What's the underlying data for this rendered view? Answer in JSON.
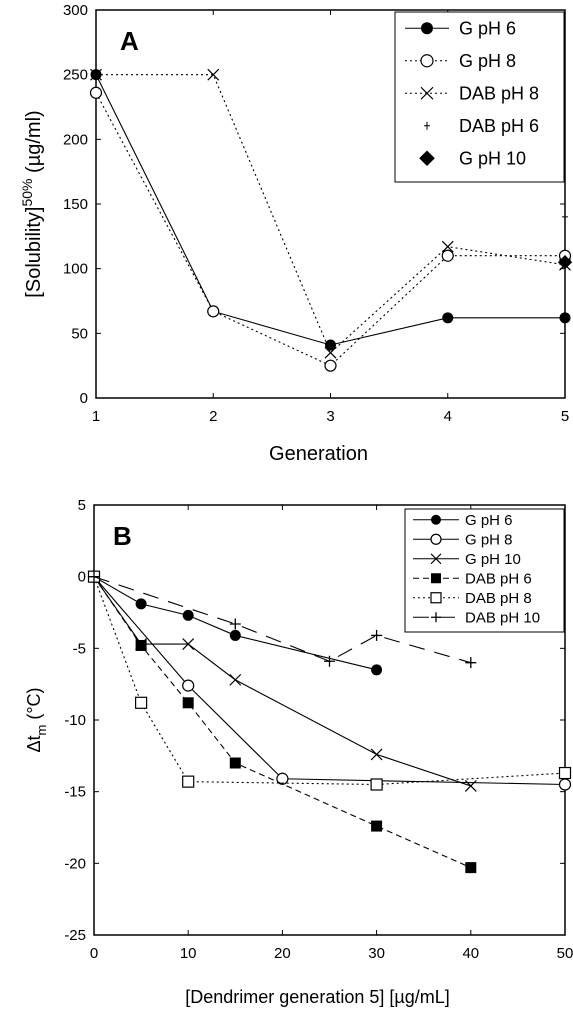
{
  "chart_data": [
    {
      "type": "line",
      "panel_label": "A",
      "xlabel": "Generation",
      "ylabel": "[Solubility]",
      "ylabel_sup": "50%",
      "ylabel_unit": "(µg/ml)",
      "xlim": [
        1,
        5
      ],
      "ylim": [
        0,
        300
      ],
      "xticks": [
        1,
        2,
        3,
        4,
        5
      ],
      "yticks": [
        0,
        50,
        100,
        150,
        200,
        250,
        300
      ],
      "grid": false,
      "legend_position": "top-right",
      "series": [
        {
          "name": "G pH 6",
          "marker": "filled-circle",
          "line": "solid",
          "x": [
            1,
            2,
            3,
            4,
            5
          ],
          "y": [
            250,
            67,
            41,
            62,
            62
          ]
        },
        {
          "name": "G pH 8",
          "marker": "open-circle",
          "line": "dotted",
          "x": [
            1,
            2,
            3,
            4,
            5
          ],
          "y": [
            236,
            67,
            25,
            110,
            110
          ]
        },
        {
          "name": "DAB pH 8",
          "marker": "x",
          "line": "dotted",
          "x": [
            1,
            2,
            3,
            4,
            5
          ],
          "y": [
            250,
            250,
            35,
            117,
            103
          ]
        },
        {
          "name": "DAB pH 6",
          "marker": "small-plus",
          "line": "none",
          "x": [
            5
          ],
          "y": [
            140
          ]
        },
        {
          "name": "G pH 10",
          "marker": "filled-diamond",
          "line": "none",
          "x": [
            5
          ],
          "y": [
            105
          ]
        }
      ]
    },
    {
      "type": "line",
      "panel_label": "B",
      "xlabel": "[Dendrimer generation 5] [µg/mL]",
      "ylabel": "Δt",
      "ylabel_sub": "m",
      "ylabel_unit": "(°C)",
      "xlim": [
        0,
        50
      ],
      "ylim": [
        -25,
        5
      ],
      "xticks": [
        0,
        10,
        20,
        30,
        40,
        50
      ],
      "yticks": [
        -25,
        -20,
        -15,
        -10,
        -5,
        0,
        5
      ],
      "grid": false,
      "legend_position": "top-right",
      "series": [
        {
          "name": "G pH 6",
          "marker": "filled-circle",
          "line": "solid",
          "x": [
            0,
            5,
            10,
            15,
            30
          ],
          "y": [
            0,
            -1.9,
            -2.7,
            -4.1,
            -6.5
          ]
        },
        {
          "name": "G pH 8",
          "marker": "open-circle",
          "line": "solid",
          "x": [
            0,
            10,
            20,
            50
          ],
          "y": [
            0,
            -7.6,
            -14.1,
            -14.5
          ]
        },
        {
          "name": "G pH 10",
          "marker": "x",
          "line": "solid",
          "x": [
            0,
            5,
            10,
            15,
            30,
            40
          ],
          "y": [
            0,
            -4.7,
            -4.7,
            -7.2,
            -12.4,
            -14.6
          ]
        },
        {
          "name": "DAB pH 6",
          "marker": "filled-square",
          "line": "dashed",
          "x": [
            0,
            5,
            10,
            15,
            30,
            40
          ],
          "y": [
            0,
            -4.8,
            -8.8,
            -13.0,
            -17.4,
            -20.3
          ]
        },
        {
          "name": "DAB pH 8",
          "marker": "open-square",
          "line": "dotted",
          "x": [
            0,
            5,
            10,
            30,
            50
          ],
          "y": [
            0,
            -8.8,
            -14.3,
            -14.5,
            -13.7
          ]
        },
        {
          "name": "DAB pH 10",
          "marker": "plus",
          "line": "long-dash",
          "x": [
            0,
            15,
            25,
            30,
            40
          ],
          "y": [
            0,
            -3.3,
            -5.9,
            -4.1,
            -6.0
          ]
        }
      ]
    }
  ]
}
